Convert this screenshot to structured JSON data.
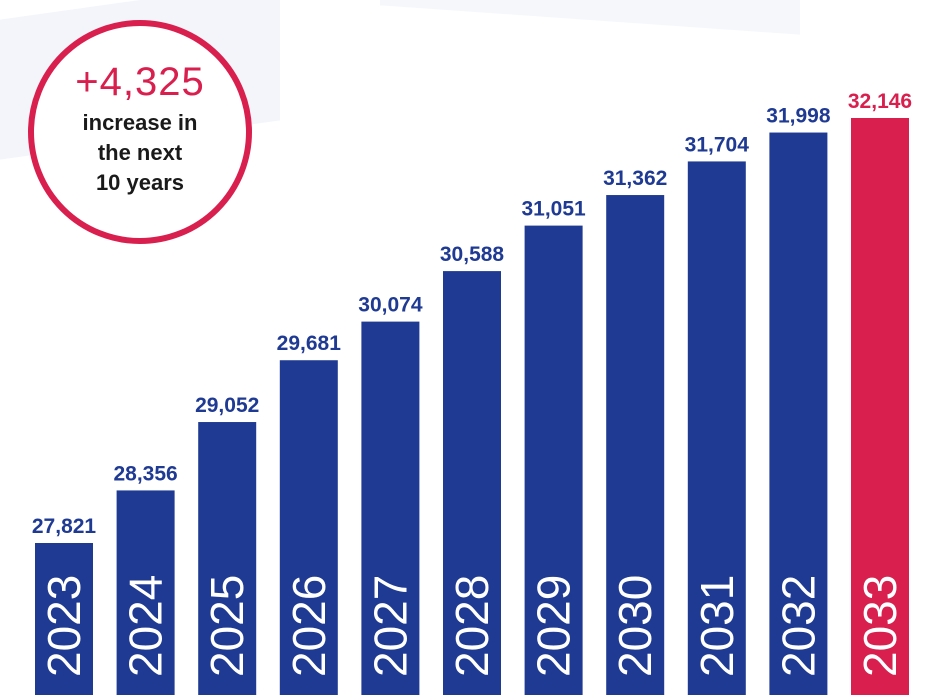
{
  "badge": {
    "value": "+4,325",
    "lines": [
      "increase in",
      "the next",
      "10 years"
    ]
  },
  "colors": {
    "bar": "#1f3a93",
    "highlight": "#d81f4e",
    "bar_label_text": "#ffffff"
  },
  "chart_data": {
    "type": "bar",
    "categories": [
      "2023",
      "2024",
      "2025",
      "2026",
      "2027",
      "2028",
      "2029",
      "2030",
      "2031",
      "2032",
      "2033"
    ],
    "values": [
      27821,
      28356,
      29052,
      29681,
      30074,
      30588,
      31051,
      31362,
      31704,
      31998,
      32146
    ],
    "value_labels": [
      "27,821",
      "28,356",
      "29,052",
      "29,681",
      "30,074",
      "30,588",
      "31,051",
      "31,362",
      "31,704",
      "31,998",
      "32,146"
    ],
    "highlight_index": 10,
    "title": "",
    "xlabel": "",
    "ylabel": "",
    "grid": false,
    "legend": "none"
  }
}
